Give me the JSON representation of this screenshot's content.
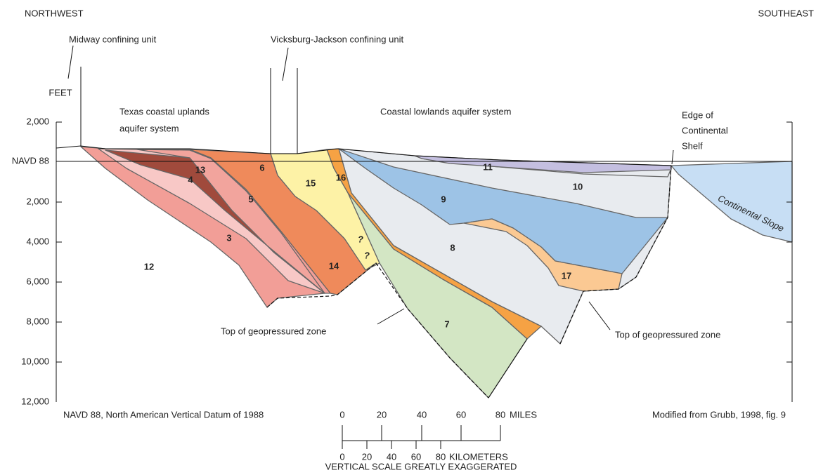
{
  "header": {
    "left": "NORTHWEST",
    "right": "SOUTHEAST"
  },
  "callouts": {
    "midway": "Midway confining unit",
    "vicksburg": "Vicksburg-Jackson confining unit",
    "uplands": [
      "Texas coastal uplands",
      "aquifer system"
    ],
    "lowlands": "Coastal lowlands aquifer system",
    "shelf_edge": [
      "Edge of",
      "Continental",
      "Shelf"
    ],
    "slope": "Continental Slope",
    "geopressure_left": "Top of geopressured zone",
    "geopressure_right": "Top of geopressured zone"
  },
  "axis": {
    "title": "FEET",
    "ticks": [
      "2,000",
      "NAVD 88",
      "2,000",
      "4,000",
      "6,000",
      "8,000",
      "10,000",
      "12,000"
    ]
  },
  "units": [
    "12",
    "3",
    "4",
    "13",
    "5",
    "6",
    "14",
    "15",
    "16",
    "7",
    "8",
    "9",
    "10",
    "11",
    "17"
  ],
  "uncertain": [
    "?",
    "?"
  ],
  "footer": {
    "datum": "NAVD 88, North American Vertical Datum of 1988",
    "source": "Modified from Grubb, 1998, fig. 9",
    "miles": [
      "0",
      "20",
      "40",
      "60",
      "80"
    ],
    "miles_unit": "MILES",
    "kilometers": [
      "0",
      "20",
      "40",
      "60",
      "80"
    ],
    "kilometers_unit": "KILOMETERS",
    "note": "VERTICAL SCALE GREATLY EXAGGERATED"
  }
}
